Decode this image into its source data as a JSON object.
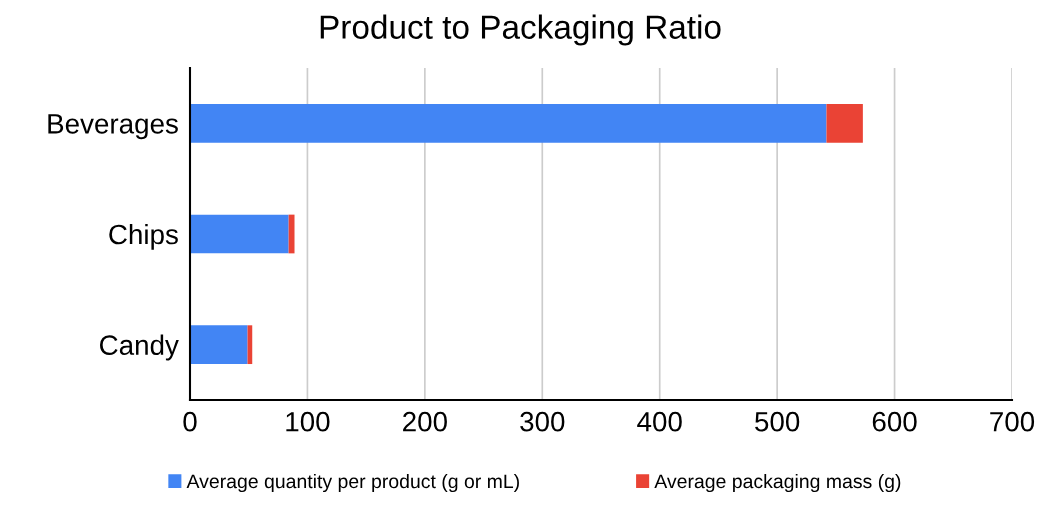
{
  "chart_data": {
    "type": "bar",
    "orientation": "horizontal",
    "stacked": true,
    "title": "Product to Packaging Ratio",
    "categories": [
      "Beverages",
      "Chips",
      "Candy"
    ],
    "series": [
      {
        "name": "Average quantity per product (g or mL)",
        "color": "#4285f4",
        "values": [
          542,
          84,
          49
        ]
      },
      {
        "name": "Average packaging mass (g)",
        "color": "#ea4335",
        "values": [
          31,
          5,
          4
        ]
      }
    ],
    "xlim": [
      0,
      700
    ],
    "xticks": [
      0,
      100,
      200,
      300,
      400,
      500,
      600,
      700
    ],
    "grid": "x",
    "legend": "bottom"
  }
}
